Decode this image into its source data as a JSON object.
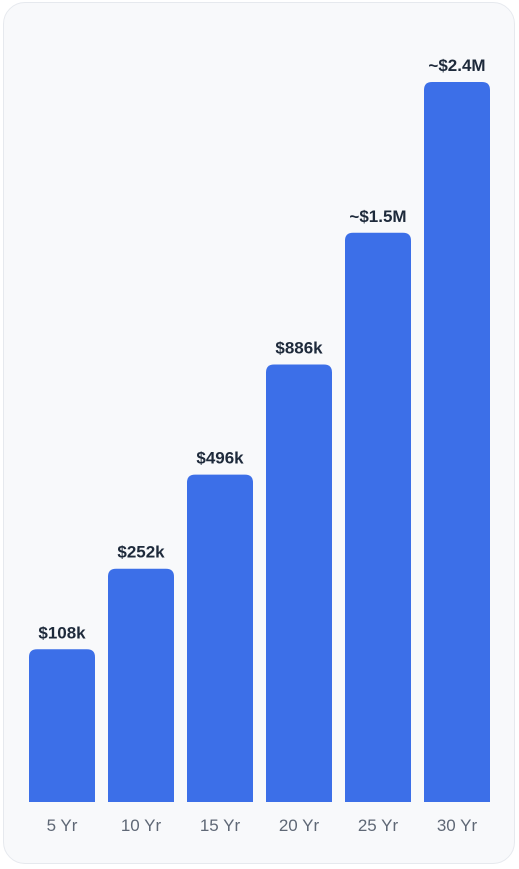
{
  "chart_data": {
    "type": "bar",
    "categories": [
      "5 Yr",
      "10 Yr",
      "15 Yr",
      "20 Yr",
      "25 Yr",
      "30 Yr"
    ],
    "values": [
      108000,
      252000,
      496000,
      886000,
      1500000,
      2400000
    ],
    "value_labels": [
      "$108k",
      "$252k",
      "$496k",
      "$886k",
      "~$1.5M",
      "~$2.4M"
    ],
    "scale": "sqrt",
    "ylim": [
      0,
      2400000
    ],
    "grid": false,
    "legend": "none",
    "colors": {
      "bar": "#3c6fe8",
      "value_text": "#1e2a3b",
      "tick_text": "#5f6876",
      "card_bg": "#f8f9fb"
    }
  }
}
